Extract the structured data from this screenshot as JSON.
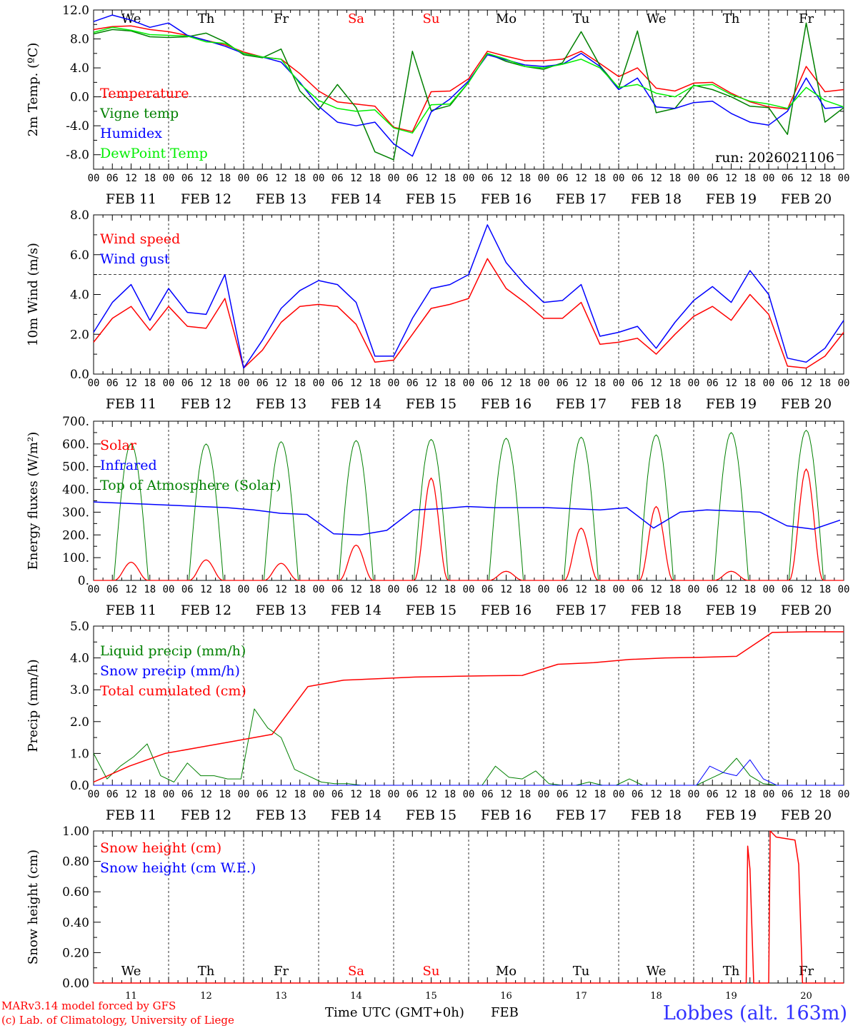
{
  "colors": {
    "red": "#ff0000",
    "green": "#008000",
    "blue": "#0000ff",
    "lime": "#00ee00",
    "navy": "#0000ff",
    "grid": "#000000"
  },
  "axis": {
    "hour_ticks": [
      "00",
      "06",
      "12",
      "18"
    ],
    "final_tick": "00",
    "date_labels": [
      "FEB 11",
      "FEB 12",
      "FEB 13",
      "FEB 14",
      "FEB 15",
      "FEB 16",
      "FEB 17",
      "FEB 18",
      "FEB 19",
      "FEB 20"
    ],
    "weekdays": [
      "We",
      "Th",
      "Fr",
      "Sa",
      "Su",
      "Mo",
      "Tu",
      "We",
      "Th",
      "Fr"
    ],
    "weekday_colors": [
      "#000000",
      "#000000",
      "#000000",
      "#ff0000",
      "#ff0000",
      "#000000",
      "#000000",
      "#000000",
      "#000000",
      "#000000"
    ],
    "day_numbers": [
      "11",
      "12",
      "13",
      "14",
      "15",
      "16",
      "17",
      "18",
      "19",
      "20"
    ]
  },
  "footer": {
    "model_line": "MARv3.14 model forced by GFS",
    "copyright_line": "(c) Lab. of Climatology, University of Liege",
    "xlabel": "Time UTC (GMT+0h)",
    "month": "FEB",
    "station": "Lobbes (alt. 163m)"
  },
  "chart_data": [
    {
      "type": "line",
      "ylabel": "2m Temp. (ºC)",
      "ylim": [
        -10,
        12
      ],
      "yticks": [
        -8,
        -4,
        0,
        4,
        8,
        12
      ],
      "ytick_labels": [
        "-8.0",
        "-4.0",
        "0.0",
        "4.0",
        "8.0",
        "12.0"
      ],
      "ref_line": 0,
      "run_label": "run: 2026021106",
      "show_weekdays": true,
      "x_days": [
        0,
        0.25,
        0.5,
        0.75,
        1,
        1.25,
        1.5,
        1.75,
        2,
        2.25,
        2.5,
        2.75,
        3,
        3.25,
        3.5,
        3.75,
        4,
        4.25,
        4.5,
        4.75,
        5,
        5.25,
        5.5,
        5.75,
        6,
        6.25,
        6.5,
        6.75,
        7,
        7.25,
        7.5,
        7.75,
        8,
        8.25,
        8.5,
        8.75,
        9,
        9.25,
        9.5,
        9.75,
        10
      ],
      "series": [
        {
          "name": "Temperature",
          "color": "#ff0000",
          "values": [
            9.3,
            9.7,
            9.8,
            9.3,
            9.0,
            8.5,
            7.8,
            7.2,
            6.2,
            5.5,
            5.2,
            3.2,
            0.8,
            -0.7,
            -1.0,
            -1.3,
            -4.2,
            -4.8,
            0.7,
            0.8,
            2.5,
            6.3,
            5.6,
            5.0,
            5.0,
            5.2,
            6.3,
            4.6,
            2.8,
            4.0,
            1.2,
            0.8,
            1.9,
            2.0,
            0.5,
            -0.7,
            -1.4,
            -1.7,
            4.2,
            0.7,
            1.0
          ]
        },
        {
          "name": "Vigne temp",
          "color": "#008000",
          "values": [
            8.7,
            9.3,
            9.1,
            8.3,
            8.2,
            8.3,
            8.8,
            7.6,
            5.8,
            5.4,
            6.6,
            0.8,
            -1.8,
            1.7,
            -1.5,
            -7.6,
            -8.7,
            6.3,
            -1.9,
            -1.2,
            2.0,
            6.0,
            4.9,
            4.2,
            3.8,
            4.7,
            9.0,
            4.3,
            1.2,
            9.1,
            -2.2,
            -1.6,
            1.6,
            1.0,
            0.0,
            -1.3,
            -1.5,
            -5.2,
            10.2,
            -3.5,
            -1.5
          ]
        },
        {
          "name": "Humidex",
          "color": "#0000ff",
          "values": [
            10.4,
            11.3,
            10.6,
            9.6,
            10.2,
            8.5,
            7.8,
            7.0,
            6.0,
            5.5,
            4.8,
            2.0,
            -1.3,
            -3.5,
            -4.0,
            -3.5,
            -6.5,
            -8.2,
            -2.1,
            -0.3,
            2.2,
            5.8,
            5.1,
            4.4,
            4.2,
            4.5,
            6.0,
            4.2,
            1.0,
            2.6,
            -1.4,
            -1.6,
            -0.8,
            -0.6,
            -2.3,
            -3.5,
            -3.9,
            -2.0,
            2.6,
            -1.6,
            -1.4
          ]
        },
        {
          "name": "DewPoint Temp",
          "color": "#00ee00",
          "values": [
            8.9,
            9.6,
            9.2,
            8.6,
            8.5,
            8.4,
            7.6,
            7.4,
            6.0,
            5.5,
            5.2,
            1.8,
            -0.5,
            -1.6,
            -2.0,
            -1.8,
            -4.3,
            -5.0,
            -1.1,
            -1.0,
            2.0,
            6.0,
            5.2,
            4.2,
            4.0,
            4.5,
            5.2,
            4.0,
            1.3,
            1.7,
            0.5,
            0.0,
            1.5,
            1.7,
            0.3,
            -0.6,
            -1.0,
            -1.6,
            1.3,
            -0.5,
            -1.4
          ]
        }
      ]
    },
    {
      "type": "line",
      "ylabel": "10m Wind (m/s)",
      "ylim": [
        0,
        8
      ],
      "yticks": [
        0,
        2,
        4,
        6,
        8
      ],
      "ytick_labels": [
        "0.0",
        "2.0",
        "4.0",
        "6.0",
        "8.0"
      ],
      "ref_line": 5,
      "show_weekdays": false,
      "x_days": [
        0,
        0.25,
        0.5,
        0.75,
        1,
        1.25,
        1.5,
        1.75,
        2,
        2.25,
        2.5,
        2.75,
        3,
        3.25,
        3.5,
        3.75,
        4,
        4.25,
        4.5,
        4.75,
        5,
        5.25,
        5.5,
        5.75,
        6,
        6.25,
        6.5,
        6.75,
        7,
        7.25,
        7.5,
        7.75,
        8,
        8.25,
        8.5,
        8.75,
        9,
        9.25,
        9.5,
        9.75,
        10
      ],
      "series": [
        {
          "name": "Wind speed",
          "color": "#ff0000",
          "values": [
            1.6,
            2.8,
            3.4,
            2.2,
            3.4,
            2.4,
            2.3,
            3.8,
            0.3,
            1.2,
            2.6,
            3.4,
            3.5,
            3.4,
            2.5,
            0.6,
            0.7,
            2.0,
            3.3,
            3.5,
            3.8,
            5.8,
            4.3,
            3.6,
            2.8,
            2.8,
            3.6,
            1.5,
            1.6,
            1.8,
            1.0,
            2.0,
            2.9,
            3.4,
            2.7,
            4.0,
            3.0,
            0.4,
            0.3,
            0.9,
            2.1
          ]
        },
        {
          "name": "Wind gust",
          "color": "#0000ff",
          "values": [
            2.1,
            3.6,
            4.5,
            2.7,
            4.3,
            3.1,
            3.0,
            5.0,
            0.3,
            1.7,
            3.3,
            4.2,
            4.7,
            4.5,
            3.6,
            0.9,
            0.9,
            2.8,
            4.3,
            4.5,
            5.0,
            7.5,
            5.6,
            4.5,
            3.6,
            3.7,
            4.5,
            1.9,
            2.1,
            2.4,
            1.3,
            2.6,
            3.7,
            4.4,
            3.6,
            5.2,
            4.0,
            0.8,
            0.6,
            1.3,
            2.7
          ]
        }
      ]
    },
    {
      "type": "line",
      "ylabel": "Energy fluxes (W/m²)",
      "ylim": [
        0,
        700
      ],
      "yticks": [
        0,
        100,
        200,
        300,
        400,
        500,
        600,
        700
      ],
      "ytick_labels": [
        "0.",
        "100.",
        "200.",
        "300.",
        "400.",
        "500.",
        "600.",
        "700."
      ],
      "show_weekdays": false,
      "solar_peaks": [
        80,
        90,
        75,
        155,
        450,
        40,
        230,
        325,
        40,
        490
      ],
      "toa_solar_peaks": [
        600,
        600,
        610,
        615,
        620,
        625,
        630,
        640,
        650,
        660
      ],
      "infrared_values": [
        345,
        340,
        335,
        330,
        325,
        320,
        310,
        295,
        290,
        205,
        200,
        220,
        310,
        315,
        325,
        320,
        320,
        320,
        315,
        310,
        320,
        230,
        300,
        310,
        305,
        300,
        240,
        225,
        265
      ],
      "series": [
        {
          "name": "Solar",
          "color": "#ff0000"
        },
        {
          "name": "Infrared",
          "color": "#0000ff"
        },
        {
          "name": "Top of Atmosphere (Solar)",
          "color": "#008000"
        }
      ]
    },
    {
      "type": "line",
      "ylabel": "Precip (mm/h)",
      "ylim": [
        0,
        5
      ],
      "yticks": [
        0,
        1,
        2,
        3,
        4,
        5
      ],
      "ytick_labels": [
        "0.0",
        "1.0",
        "2.0",
        "3.0",
        "4.0",
        "5.0"
      ],
      "show_weekdays": false,
      "liquid_precip": [
        1.0,
        0.2,
        0.6,
        0.9,
        1.3,
        0.3,
        0.1,
        0.7,
        0.3,
        0.3,
        0.2,
        0.2,
        2.4,
        1.8,
        1.5,
        0.5,
        0.3,
        0.1,
        0.05,
        0.05,
        0.0,
        0.0,
        0.0,
        0.0,
        0.0,
        0.0,
        0.0,
        0.0,
        0.0,
        0.0,
        0.6,
        0.25,
        0.2,
        0.45,
        0.05,
        0.0,
        0.0,
        0.1,
        0.0,
        0.0,
        0.2,
        0.0,
        0.0,
        0.0,
        0.0,
        0.0,
        0.2,
        0.4,
        0.85,
        0.3,
        0.05,
        0.0,
        0.0,
        0.0,
        0.0,
        0.0,
        0.0
      ],
      "snow_precip": [
        0.0,
        0.0,
        0.0,
        0.0,
        0.0,
        0.0,
        0.0,
        0.0,
        0.0,
        0.0,
        0.0,
        0.0,
        0.0,
        0.0,
        0.0,
        0.0,
        0.0,
        0.0,
        0.0,
        0.0,
        0.0,
        0.0,
        0.0,
        0.0,
        0.0,
        0.0,
        0.0,
        0.0,
        0.0,
        0.0,
        0.0,
        0.0,
        0.0,
        0.0,
        0.0,
        0.0,
        0.0,
        0.0,
        0.0,
        0.0,
        0.0,
        0.0,
        0.0,
        0.0,
        0.0,
        0.0,
        0.6,
        0.4,
        0.3,
        0.8,
        0.2,
        0.0,
        0.0,
        0.0,
        0.0,
        0.0,
        0.0
      ],
      "total_cumulated": [
        0.1,
        0.6,
        1.0,
        1.2,
        1.4,
        1.6,
        3.1,
        3.3,
        3.35,
        3.4,
        3.42,
        3.44,
        3.45,
        3.8,
        3.85,
        3.95,
        4.0,
        4.02,
        4.05,
        4.8,
        4.82,
        4.82
      ],
      "series": [
        {
          "name": "Liquid precip (mm/h)",
          "color": "#008000"
        },
        {
          "name": "Snow precip (mm/h)",
          "color": "#0000ff"
        },
        {
          "name": "Total cumulated (cm)",
          "color": "#ff0000"
        }
      ]
    },
    {
      "type": "line",
      "ylabel": "Snow height (cm)",
      "ylim": [
        0,
        1
      ],
      "yticks": [
        0,
        0.2,
        0.4,
        0.6,
        0.8,
        1.0
      ],
      "ytick_labels": [
        "0.00",
        "0.20",
        "0.40",
        "0.60",
        "0.80",
        "1.00"
      ],
      "show_weekdays_bottom": true,
      "snow_height": [
        [
          0,
          0
        ],
        [
          8.7,
          0
        ],
        [
          8.72,
          0.9
        ],
        [
          8.75,
          0.75
        ],
        [
          8.8,
          0
        ],
        [
          9.0,
          0
        ],
        [
          9.02,
          1.0
        ],
        [
          9.1,
          0.96
        ],
        [
          9.35,
          0.94
        ],
        [
          9.4,
          0.78
        ],
        [
          9.45,
          0
        ],
        [
          10,
          0
        ]
      ],
      "series": [
        {
          "name": "Snow height (cm)",
          "color": "#ff0000"
        },
        {
          "name": "Snow height (cm W.E.)",
          "color": "#0000ff"
        }
      ]
    }
  ]
}
